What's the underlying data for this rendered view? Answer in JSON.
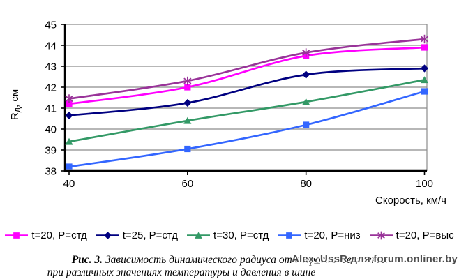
{
  "chart_data": {
    "type": "line",
    "x": [
      40,
      60,
      80,
      100
    ],
    "series": [
      {
        "name": "t=20, P=стд",
        "marker": "square",
        "color": "#FF00FF",
        "values": [
          41.2,
          42.0,
          43.5,
          43.9
        ]
      },
      {
        "name": "t=25, P=стд",
        "marker": "diamond",
        "color": "#000080",
        "values": [
          40.65,
          41.25,
          42.6,
          42.9
        ]
      },
      {
        "name": "t=30, P=стд",
        "marker": "triangle",
        "color": "#339966",
        "values": [
          39.4,
          40.4,
          41.3,
          42.35
        ]
      },
      {
        "name": "t=20, P=низ",
        "marker": "square",
        "color": "#3366FF",
        "values": [
          38.2,
          39.05,
          40.2,
          41.8
        ]
      },
      {
        "name": "t=20, P=выс",
        "marker": "star",
        "color": "#993399",
        "values": [
          41.45,
          42.3,
          43.65,
          44.3
        ]
      }
    ],
    "title": "",
    "xlabel": "Скорость, км/ч",
    "ylabel": "Rд, см",
    "ylabel_parts": [
      {
        "text": "R",
        "sub": false
      },
      {
        "text": "д",
        "sub": true
      },
      {
        "text": ", см",
        "sub": false
      }
    ],
    "xlim": [
      40,
      100
    ],
    "ylim": [
      38,
      45
    ],
    "ytick_step": 1,
    "xticks": [
      40,
      60,
      80,
      100
    ],
    "grid": true,
    "legend_position": "bottom"
  },
  "caption": {
    "prefix": "Рис. 3.",
    "line1": "Зависимость динамического радиуса от скорости движения",
    "line2": "при различных значениях температуры и давления в шине"
  },
  "watermark": "Alex_UssR для forum.onliner.by"
}
